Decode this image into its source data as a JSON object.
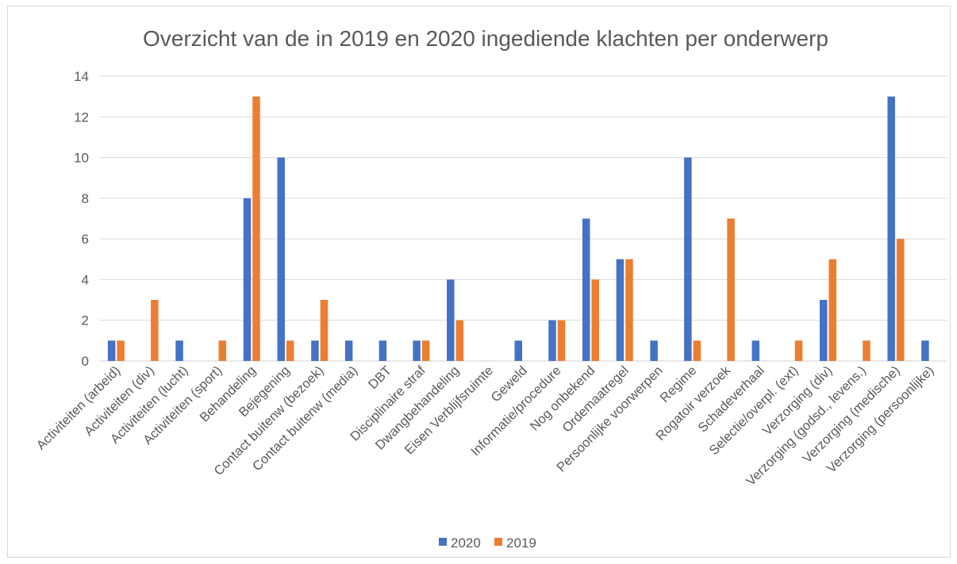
{
  "chart_data": {
    "type": "bar",
    "title": "Overzicht van de in 2019 en 2020 ingediende klachten per onderwerp",
    "xlabel": "",
    "ylabel": "",
    "ylim": [
      0,
      14
    ],
    "yticks": [
      0,
      2,
      4,
      6,
      8,
      10,
      12,
      14
    ],
    "grid": true,
    "legend_position": "bottom",
    "categories": [
      "Activiteiten (arbeid)",
      "Activiteiten (div)",
      "Activiteiten (lucht)",
      "Activiteiten (sport)",
      "Behandeling",
      "Bejegening",
      "Contact buitenw (bezoek)",
      "Contact buitenw (media)",
      "DBT",
      "Disciplinaire straf",
      "Dwangbehandeling",
      "Eisen Verblijfsruimte",
      "Geweld",
      "Informatie/procedure",
      "Nog onbekend",
      "Ordemaatregel",
      "Persoonlijke voorwerpen",
      "Regime",
      "Rogatoir verzoek",
      "Schadeverhaal",
      "Selectie/overpl. (ext)",
      "Verzorging (div)",
      "Verzorging (godsd., levens.)",
      "Verzorging (medische)",
      "Verzorging (persoonlijke)"
    ],
    "series": [
      {
        "name": "2020",
        "color": "#4472c4",
        "values": [
          1,
          0,
          1,
          0,
          8,
          10,
          1,
          1,
          1,
          1,
          4,
          0,
          1,
          2,
          7,
          5,
          1,
          10,
          0,
          1,
          0,
          3,
          0,
          13,
          1
        ]
      },
      {
        "name": "2019",
        "color": "#ed7d31",
        "values": [
          1,
          3,
          0,
          1,
          13,
          1,
          3,
          0,
          0,
          1,
          2,
          0,
          0,
          2,
          4,
          5,
          0,
          1,
          7,
          0,
          1,
          5,
          1,
          6,
          0
        ]
      }
    ]
  }
}
